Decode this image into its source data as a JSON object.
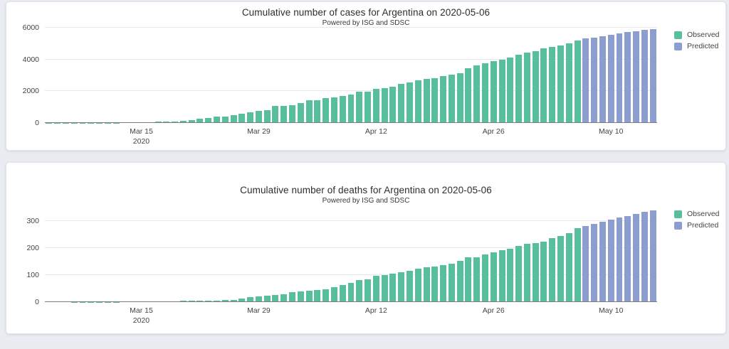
{
  "page": {
    "background": "#e9ecf1",
    "card_background": "#ffffff"
  },
  "chart_data": [
    {
      "type": "bar",
      "title": "Cumulative number of cases for Argentina on 2020-05-06",
      "subtitle": "Powered by ISG and SDSC",
      "ylabel": "",
      "xlabel": "",
      "grid": true,
      "legend_position": "right-top",
      "legend": [
        {
          "label": "Observed",
          "color": "#57bf9e"
        },
        {
          "label": "Predicted",
          "color": "#8c9ed0"
        }
      ],
      "x_start_date": "2020-03-04",
      "x_ticks": [
        {
          "label": "Mar 15",
          "sublabel": "2020",
          "index": 11
        },
        {
          "label": "Mar 29",
          "sublabel": "",
          "index": 25
        },
        {
          "label": "Apr 12",
          "sublabel": "",
          "index": 39
        },
        {
          "label": "Apr 26",
          "sublabel": "",
          "index": 53
        },
        {
          "label": "May 10",
          "sublabel": "",
          "index": 67
        }
      ],
      "y_ticks": [
        0,
        2000,
        4000,
        6000
      ],
      "ylim": [
        0,
        6000
      ],
      "series": [
        {
          "name": "Observed",
          "values": [
            1,
            1,
            2,
            8,
            12,
            12,
            17,
            19,
            19,
            31,
            34,
            45,
            56,
            68,
            79,
            97,
            128,
            158,
            266,
            301,
            387,
            387,
            502,
            589,
            690,
            745,
            820,
            1054,
            1054,
            1133,
            1265,
            1451,
            1451,
            1554,
            1628,
            1715,
            1795,
            1975,
            1975,
            2142,
            2208,
            2277,
            2443,
            2571,
            2669,
            2758,
            2839,
            2941,
            3031,
            3144,
            3435,
            3607,
            3780,
            3892,
            4003,
            4127,
            4285,
            4428,
            4532,
            4681,
            4783,
            4887,
            5020,
            5208
          ]
        },
        {
          "name": "Predicted",
          "values": [
            5310,
            5395,
            5480,
            5560,
            5640,
            5715,
            5790,
            5860,
            5930
          ]
        }
      ]
    },
    {
      "type": "bar",
      "title": "Cumulative number of deaths for Argentina on 2020-05-06",
      "subtitle": "Powered by ISG and SDSC",
      "ylabel": "",
      "xlabel": "",
      "grid": true,
      "legend_position": "right-top",
      "legend": [
        {
          "label": "Observed",
          "color": "#57bf9e"
        },
        {
          "label": "Predicted",
          "color": "#8c9ed0"
        }
      ],
      "x_start_date": "2020-03-04",
      "x_ticks": [
        {
          "label": "Mar 15",
          "sublabel": "2020",
          "index": 11
        },
        {
          "label": "Mar 29",
          "sublabel": "",
          "index": 25
        },
        {
          "label": "Apr 12",
          "sublabel": "",
          "index": 39
        },
        {
          "label": "Apr 26",
          "sublabel": "",
          "index": 53
        },
        {
          "label": "May 10",
          "sublabel": "",
          "index": 67
        }
      ],
      "y_ticks": [
        0,
        100,
        200,
        300
      ],
      "ylim": [
        0,
        350
      ],
      "series": [
        {
          "name": "Observed",
          "values": [
            0,
            0,
            0,
            1,
            1,
            1,
            1,
            1,
            1,
            2,
            2,
            2,
            2,
            2,
            3,
            3,
            4,
            4,
            4,
            4,
            6,
            8,
            9,
            13,
            18,
            20,
            23,
            27,
            28,
            36,
            39,
            43,
            44,
            48,
            56,
            63,
            72,
            82,
            83,
            97,
            101,
            105,
            111,
            115,
            123,
            129,
            132,
            136,
            142,
            152,
            165,
            167,
            176,
            185,
            192,
            197,
            207,
            215,
            218,
            225,
            237,
            246,
            256,
            273
          ]
        },
        {
          "name": "Predicted",
          "values": [
            281,
            289,
            297,
            305,
            312,
            319,
            326,
            333,
            340
          ]
        }
      ]
    }
  ]
}
